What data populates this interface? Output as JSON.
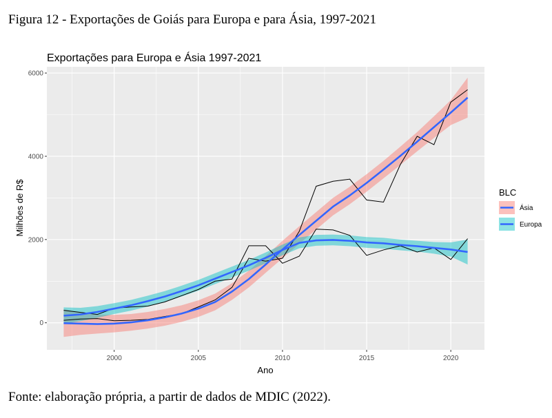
{
  "figure_caption": "Figura 12 - Exportações de Goiás para Europa e para Ásia, 1997-2021",
  "source_caption": "Fonte: elaboração própria, a partir de dados de MDIC (2022).",
  "colors": {
    "panel_bg": "#ebebeb",
    "grid": "#ffffff",
    "raw_line": "#000000",
    "smooth_line": "#3366ff",
    "asia_band": "#f8766d",
    "europa_band": "#00bfc4"
  },
  "chart_data": {
    "type": "line",
    "title": "Exportações para Europa e Ásia 1997-2021",
    "xlabel": "Ano",
    "ylabel": "Milhões de R$",
    "xlim": [
      1996.0,
      2022.0
    ],
    "ylim": [
      -650,
      6150
    ],
    "x_ticks": [
      2000,
      2005,
      2010,
      2015,
      2020
    ],
    "y_ticks": [
      0,
      2000,
      4000,
      6000
    ],
    "grid": true,
    "legend": {
      "title": "BLC",
      "position": "right",
      "entries": [
        "Ásia",
        "Europa"
      ]
    },
    "x": [
      1997,
      1998,
      1999,
      2000,
      2001,
      2002,
      2003,
      2004,
      2005,
      2006,
      2007,
      2008,
      2009,
      2010,
      2011,
      2012,
      2013,
      2014,
      2015,
      2016,
      2017,
      2018,
      2019,
      2020,
      2021
    ],
    "series": [
      {
        "name": "Ásia",
        "values": [
          60,
          90,
          100,
          50,
          60,
          80,
          150,
          220,
          380,
          550,
          850,
          1550,
          1480,
          1550,
          2200,
          3280,
          3400,
          3450,
          2950,
          2900,
          3800,
          4480,
          4280,
          5300,
          5600
        ],
        "smooth": [
          -10,
          -20,
          -30,
          -20,
          10,
          60,
          130,
          220,
          340,
          500,
          750,
          1050,
          1400,
          1760,
          2110,
          2450,
          2790,
          3060,
          3360,
          3680,
          4010,
          4350,
          4700,
          5050,
          5410
        ],
        "band_halfwidth": [
          330,
          270,
          230,
          210,
          200,
          200,
          200,
          200,
          200,
          200,
          200,
          200,
          200,
          210,
          210,
          210,
          210,
          210,
          210,
          210,
          220,
          230,
          260,
          300,
          480
        ]
      },
      {
        "name": "Europa",
        "values": [
          300,
          250,
          200,
          350,
          380,
          400,
          500,
          650,
          800,
          1000,
          1050,
          1850,
          1850,
          1430,
          1600,
          2250,
          2230,
          2100,
          1620,
          1750,
          1850,
          1700,
          1800,
          1520,
          2020
        ],
        "smooth": [
          170,
          200,
          260,
          340,
          420,
          520,
          630,
          760,
          900,
          1060,
          1220,
          1380,
          1560,
          1750,
          1920,
          1980,
          1990,
          1970,
          1930,
          1910,
          1870,
          1840,
          1800,
          1760,
          1700
        ],
        "band_halfwidth": [
          200,
          160,
          140,
          130,
          130,
          130,
          130,
          130,
          130,
          130,
          130,
          130,
          130,
          130,
          130,
          130,
          130,
          130,
          130,
          130,
          130,
          130,
          140,
          170,
          300
        ]
      }
    ]
  }
}
